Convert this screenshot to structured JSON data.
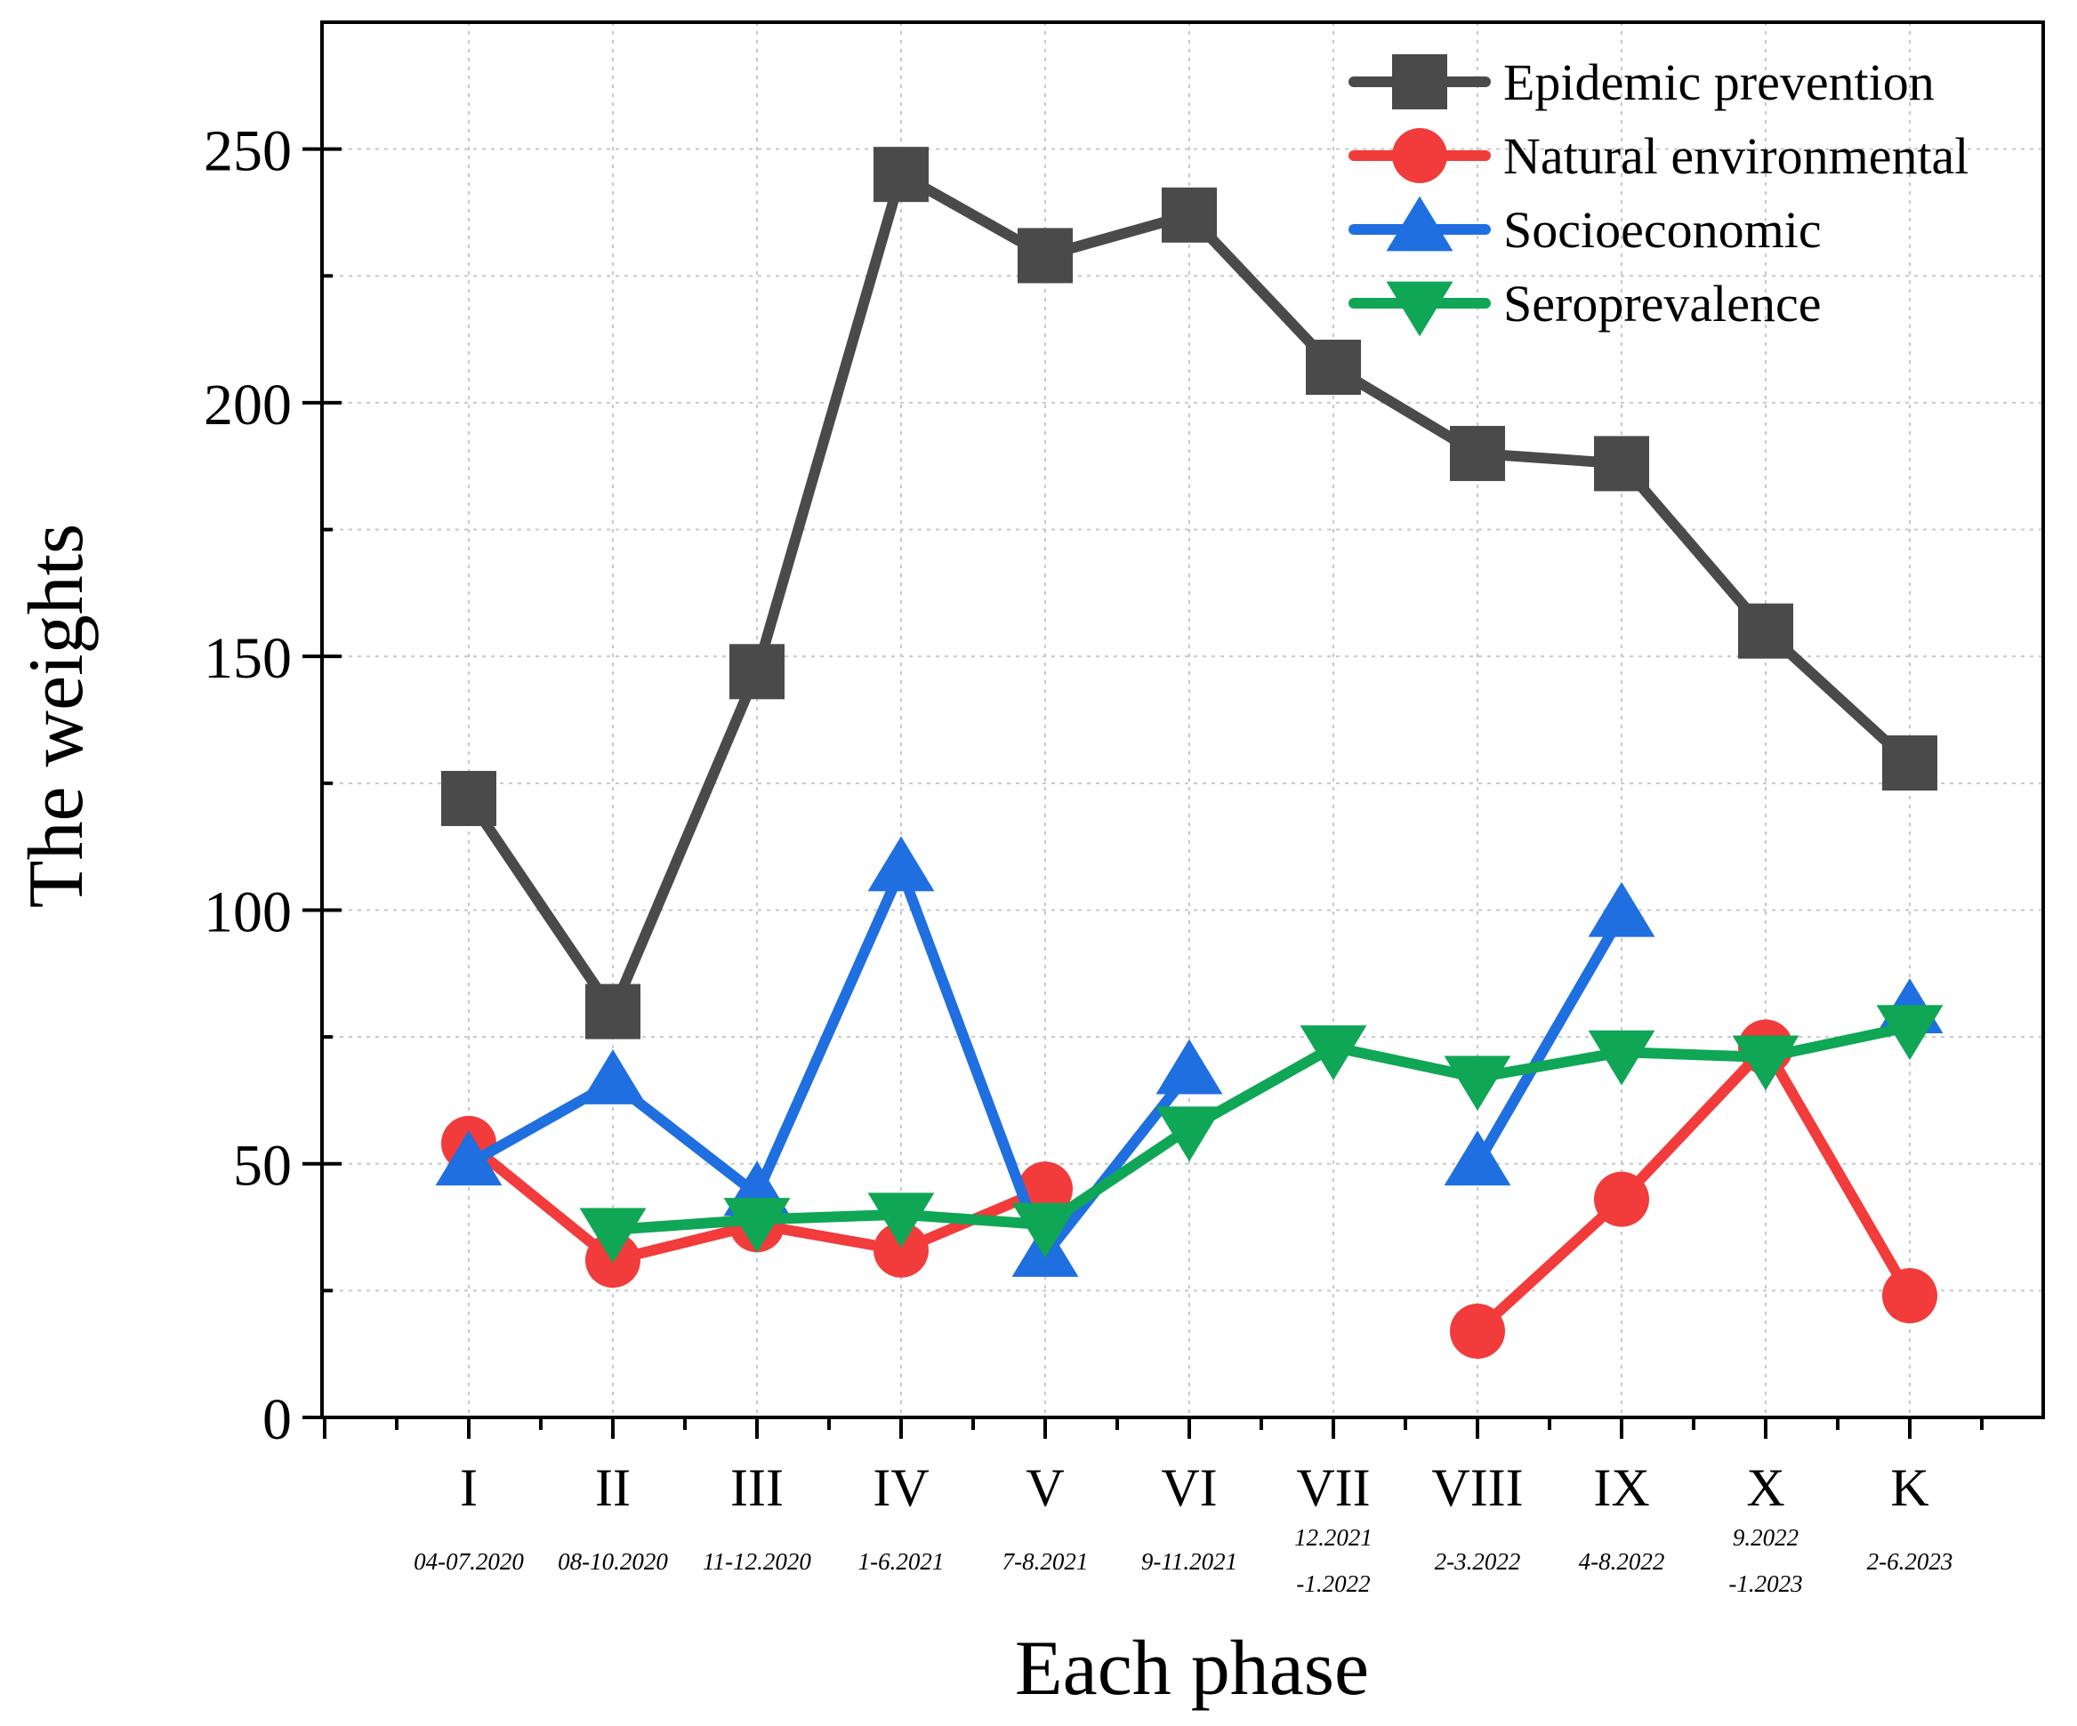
{
  "chart_data": {
    "type": "line",
    "xlabel": "Each phase",
    "ylabel": "The weights",
    "ylim": [
      0,
      275
    ],
    "yticks": [
      0,
      50,
      100,
      150,
      200,
      250
    ],
    "grid": true,
    "legend_position": "top-right",
    "categories": [
      {
        "label": "I",
        "period": [
          "04-07.2020"
        ]
      },
      {
        "label": "II",
        "period": [
          "08-10.2020"
        ]
      },
      {
        "label": "III",
        "period": [
          "11-12.2020"
        ]
      },
      {
        "label": "IV",
        "period": [
          "1-6.2021"
        ]
      },
      {
        "label": "V",
        "period": [
          "7-8.2021"
        ]
      },
      {
        "label": "VI",
        "period": [
          "9-11.2021"
        ]
      },
      {
        "label": "VII",
        "period": [
          "12.2021",
          "-1.2022"
        ]
      },
      {
        "label": "VIII",
        "period": [
          "2-3.2022"
        ]
      },
      {
        "label": "IX",
        "period": [
          "4-8.2022"
        ]
      },
      {
        "label": "X",
        "period": [
          "9.2022",
          "-1.2023"
        ]
      },
      {
        "label": "K",
        "period": [
          "2-6.2023"
        ]
      }
    ],
    "series": [
      {
        "name": "Epidemic prevention",
        "color": "#4a4a4a",
        "marker": "square",
        "values": [
          122,
          80,
          147,
          245,
          229,
          237,
          207,
          190,
          188,
          155,
          129
        ]
      },
      {
        "name": "Natural environmental",
        "color": "#f23b3b",
        "marker": "circle",
        "values": [
          54,
          31,
          38,
          33,
          45,
          null,
          null,
          17,
          43,
          73,
          24
        ]
      },
      {
        "name": "Socioeconomic",
        "color": "#1f6fe0",
        "marker": "triangle-up",
        "values": [
          50,
          66,
          44,
          108,
          32,
          68,
          null,
          50,
          99,
          null,
          80
        ]
      },
      {
        "name": "Seroprevalence",
        "color": "#0fa655",
        "marker": "triangle-down",
        "values": [
          null,
          37,
          39,
          40,
          38,
          57,
          73,
          67,
          72,
          71,
          77
        ]
      }
    ]
  }
}
